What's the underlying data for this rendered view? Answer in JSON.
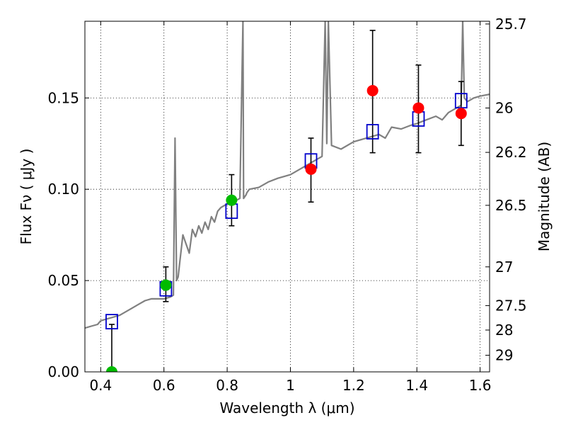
{
  "chart_data": {
    "type": "scatter",
    "xlabel": "Wavelength  λ (μm)",
    "ylabel": "Flux  Fν  ( μJy )",
    "ylabel_right": "Magnitude (AB)",
    "xlim": [
      0.35,
      1.63
    ],
    "ylim": [
      0.0,
      0.192
    ],
    "grid": true,
    "x_ticks": [
      0.4,
      0.6,
      0.8,
      1.0,
      1.2,
      1.4,
      1.6
    ],
    "x_tick_labels": [
      "0.4",
      "0.6",
      "0.8",
      "1",
      "1.2",
      "1.4",
      "1.6"
    ],
    "y_ticks": [
      0.0,
      0.05,
      0.1,
      0.15
    ],
    "y_tick_labels": [
      "0.00",
      "0.05",
      "0.10",
      "0.15"
    ],
    "mag_ticks": [
      {
        "label": "25.7",
        "flux": 0.1905
      },
      {
        "label": "26",
        "flux": 0.1445
      },
      {
        "label": "26.2",
        "flux": 0.1202
      },
      {
        "label": "26.5",
        "flux": 0.0912
      },
      {
        "label": "27",
        "flux": 0.0575
      },
      {
        "label": "27.5",
        "flux": 0.0363
      },
      {
        "label": "28",
        "flux": 0.0229
      },
      {
        "label": "29",
        "flux": 0.0091
      }
    ],
    "colors": {
      "model": "#808080",
      "model_photometry": "#0000cc",
      "detection": "#ff0000",
      "upper_limit": "#00bb00",
      "errorbar": "#000000"
    },
    "model_spectrum": {
      "x": [
        0.35,
        0.37,
        0.39,
        0.4,
        0.42,
        0.44,
        0.46,
        0.48,
        0.5,
        0.52,
        0.54,
        0.56,
        0.58,
        0.6,
        0.62,
        0.63,
        0.635,
        0.64,
        0.645,
        0.65,
        0.66,
        0.67,
        0.68,
        0.69,
        0.7,
        0.71,
        0.72,
        0.73,
        0.74,
        0.75,
        0.76,
        0.77,
        0.78,
        0.8,
        0.82,
        0.84,
        0.85,
        0.852,
        0.86,
        0.862,
        0.87,
        0.9,
        0.93,
        0.96,
        1.0,
        1.04,
        1.08,
        1.1,
        1.11,
        1.115,
        1.12,
        1.13,
        1.16,
        1.2,
        1.24,
        1.28,
        1.3,
        1.32,
        1.35,
        1.38,
        1.4,
        1.43,
        1.46,
        1.48,
        1.5,
        1.52,
        1.54,
        1.545,
        1.55,
        1.56,
        1.58,
        1.6,
        1.63
      ],
      "y": [
        0.024,
        0.025,
        0.026,
        0.028,
        0.029,
        0.03,
        0.031,
        0.033,
        0.035,
        0.037,
        0.039,
        0.04,
        0.04,
        0.04,
        0.041,
        0.042,
        0.128,
        0.05,
        0.052,
        0.06,
        0.075,
        0.07,
        0.065,
        0.078,
        0.074,
        0.08,
        0.076,
        0.082,
        0.078,
        0.085,
        0.082,
        0.088,
        0.09,
        0.092,
        0.093,
        0.095,
        0.192,
        0.095,
        0.097,
        0.098,
        0.1,
        0.101,
        0.104,
        0.106,
        0.108,
        0.112,
        0.116,
        0.118,
        0.192,
        0.125,
        0.192,
        0.124,
        0.122,
        0.126,
        0.128,
        0.13,
        0.128,
        0.134,
        0.133,
        0.135,
        0.136,
        0.138,
        0.14,
        0.138,
        0.142,
        0.144,
        0.146,
        0.192,
        0.15,
        0.148,
        0.15,
        0.151,
        0.152
      ]
    },
    "model_photometry": {
      "x": [
        0.435,
        0.606,
        0.814,
        1.065,
        1.26,
        1.405,
        1.54
      ],
      "y": [
        0.0275,
        0.0455,
        0.088,
        0.1155,
        0.1315,
        0.1385,
        0.1485
      ]
    },
    "observed": [
      {
        "x": 0.435,
        "y": 0.0,
        "yerr_low": 0.0,
        "yerr_high": 0.026,
        "kind": "upper_limit"
      },
      {
        "x": 0.606,
        "y": 0.0475,
        "yerr_low": 0.0385,
        "yerr_high": 0.0575,
        "kind": "upper_limit"
      },
      {
        "x": 0.814,
        "y": 0.094,
        "yerr_low": 0.08,
        "yerr_high": 0.108,
        "kind": "upper_limit"
      },
      {
        "x": 1.065,
        "y": 0.111,
        "yerr_low": 0.093,
        "yerr_high": 0.128,
        "kind": "detection"
      },
      {
        "x": 1.26,
        "y": 0.154,
        "yerr_low": 0.12,
        "yerr_high": 0.187,
        "kind": "detection"
      },
      {
        "x": 1.405,
        "y": 0.1445,
        "yerr_low": 0.12,
        "yerr_high": 0.168,
        "kind": "detection"
      },
      {
        "x": 1.54,
        "y": 0.1415,
        "yerr_low": 0.124,
        "yerr_high": 0.159,
        "kind": "detection"
      }
    ]
  }
}
